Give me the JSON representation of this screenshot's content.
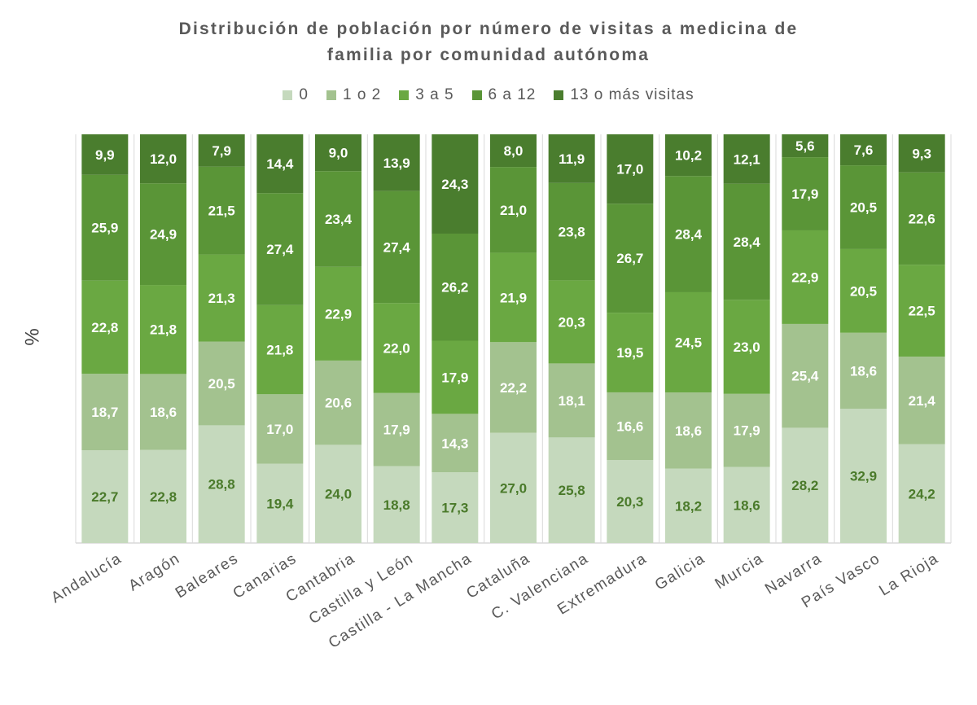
{
  "chart_data": {
    "type": "bar",
    "stacked": true,
    "title": "Distribución de población por número de visitas a medicina de familia por comunidad autónoma",
    "ylabel": "%",
    "xlabel": "",
    "ylim": [
      0,
      100
    ],
    "grid": "vertical separators",
    "legend_position": "top",
    "categories": [
      "Andalucía",
      "Aragón",
      "Baleares",
      "Canarias",
      "Cantabria",
      "Castilla y León",
      "Castilla - La Mancha",
      "Cataluña",
      "C. Valenciana",
      "Extremadura",
      "Galicia",
      "Murcia",
      "Navarra",
      "País Vasco",
      "La Rioja"
    ],
    "series": [
      {
        "name": "0",
        "color": "#c5d9bd",
        "label_color": "#4a7a2a",
        "values": [
          22.7,
          22.8,
          28.8,
          19.4,
          24.0,
          18.8,
          17.3,
          27.0,
          25.8,
          20.3,
          18.2,
          18.6,
          28.2,
          32.9,
          24.2
        ]
      },
      {
        "name": "1 o 2",
        "color": "#a3c28f",
        "label_color": "#ffffff",
        "values": [
          18.7,
          18.6,
          20.5,
          17.0,
          20.6,
          17.9,
          14.3,
          22.2,
          18.1,
          16.6,
          18.6,
          17.9,
          25.4,
          18.6,
          21.4
        ]
      },
      {
        "name": "3 a 5",
        "color": "#6aa842",
        "label_color": "#ffffff",
        "values": [
          22.8,
          21.8,
          21.3,
          21.8,
          22.9,
          22.0,
          17.9,
          21.9,
          20.3,
          19.5,
          24.5,
          23.0,
          22.9,
          20.5,
          22.5
        ]
      },
      {
        "name": "6 a 12",
        "color": "#5a9537",
        "label_color": "#ffffff",
        "values": [
          25.9,
          24.9,
          21.5,
          27.4,
          23.4,
          27.4,
          26.2,
          21.0,
          23.8,
          26.7,
          28.4,
          28.4,
          17.9,
          20.5,
          22.6
        ]
      },
      {
        "name": "13 o más visitas",
        "color": "#4a7d2e",
        "label_color": "#ffffff",
        "values": [
          9.9,
          12.0,
          7.9,
          14.4,
          9.0,
          13.9,
          24.3,
          8.0,
          11.9,
          17.0,
          10.2,
          12.1,
          5.6,
          7.6,
          9.3
        ]
      }
    ]
  }
}
